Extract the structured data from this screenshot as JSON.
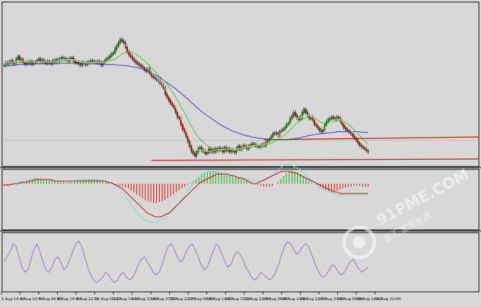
{
  "watermark": {
    "brand": "91PME.COM",
    "tagline": "鑫汇宝贵金属"
  },
  "chart_data": [
    {
      "type": "candlestick",
      "panel": "price",
      "x_ticks": [
        "2 Aug 14:00",
        "3 Aug 22:00",
        "5 Aug 06:00",
        "8 Aug 14:00",
        "9 Aug 22:00",
        "11 Aug 06:00",
        "12 Aug 14:00",
        "13 Aug 22:00",
        "14 Aug 07:00",
        "15 Aug 22:00",
        "17 Aug 06:00",
        "18 Aug 14:00",
        "20 Aug 15:00",
        "21 Aug 22:00",
        "23 Aug 06:00",
        "24 Aug 14:00",
        "26 Aug 22:00",
        "27 Aug 23:00",
        "29 Aug 06:00",
        "30 Aug 14:00",
        "31 Aug 22:00"
      ],
      "price_closes": [
        62,
        58,
        60,
        57,
        55,
        60,
        58,
        52,
        48,
        55,
        53,
        58,
        60,
        57,
        59,
        56,
        60,
        58,
        57,
        55,
        52,
        57,
        54,
        57,
        59,
        56,
        58,
        60,
        55,
        57,
        53,
        55,
        52,
        50,
        51,
        52,
        53,
        55,
        51,
        50,
        55,
        58,
        57,
        60,
        62,
        58,
        60,
        61,
        58,
        57,
        55,
        56,
        57,
        58,
        56,
        58,
        62,
        58,
        55,
        52,
        50,
        47,
        44,
        42,
        35,
        30,
        25,
        20,
        22,
        25,
        32,
        40,
        45,
        48,
        52,
        55,
        58,
        60,
        62,
        64,
        66,
        70,
        72,
        68,
        75,
        80,
        82,
        84,
        86,
        88,
        92,
        95,
        100,
        110,
        115,
        120,
        125,
        128,
        132,
        140,
        148,
        150,
        160,
        168,
        172,
        180,
        188,
        196,
        204,
        208,
        212,
        205,
        200,
        198,
        203,
        204,
        208,
        206,
        201,
        205,
        202,
        205,
        200,
        203,
        199,
        201,
        205,
        198,
        203,
        200,
        205,
        202,
        204,
        206,
        200,
        196,
        201,
        198,
        195,
        197,
        200,
        196,
        194,
        192,
        193,
        195,
        196,
        197,
        195,
        193,
        195,
        190,
        188,
        185,
        180,
        176,
        174,
        175,
        178,
        172,
        170,
        168,
        165,
        160,
        158,
        150,
        146,
        140,
        145,
        150,
        152,
        148,
        140,
        135,
        140,
        145,
        150,
        148,
        152,
        160,
        162,
        166,
        170,
        172,
        168,
        160,
        155,
        152,
        150,
        148,
        150,
        152,
        148,
        150,
        155,
        160,
        165,
        168,
        170,
        172,
        175,
        178,
        182,
        185,
        190,
        194,
        196,
        198,
        200,
        203,
        205
      ],
      "ma_fast": [
        60,
        59,
        58,
        58,
        57,
        57,
        57,
        56,
        55,
        55,
        55,
        55,
        56,
        56,
        56,
        57,
        57,
        57,
        57,
        57,
        56,
        56,
        56,
        56,
        56,
        57,
        57,
        57,
        57,
        56,
        56,
        55,
        54,
        53,
        53,
        53,
        53,
        53,
        53,
        53,
        53,
        54,
        55,
        56,
        57,
        58,
        58,
        59,
        59,
        59,
        58,
        58,
        58,
        57,
        57,
        57,
        58,
        58,
        57,
        56,
        55,
        53,
        51,
        48,
        45,
        42,
        38,
        34,
        31,
        29,
        29,
        30,
        32,
        35,
        38,
        42,
        46,
        50,
        53,
        57,
        60,
        63,
        66,
        68,
        71,
        74,
        77,
        80,
        83,
        86,
        89,
        92,
        96,
        101,
        106,
        111,
        116,
        121,
        126,
        131,
        137,
        143,
        150,
        157,
        163,
        170,
        177,
        184,
        190,
        195,
        200,
        202,
        202,
        202,
        202,
        203,
        204,
        204,
        204,
        204,
        204,
        203,
        203,
        202,
        202,
        202,
        202,
        201,
        201,
        201,
        201,
        201,
        202,
        202,
        201,
        200,
        200,
        199,
        198,
        197,
        197,
        197,
        196,
        195,
        194,
        194,
        194,
        194,
        194,
        194,
        193,
        192,
        191,
        189,
        187,
        184,
        181,
        179,
        178,
        176,
        174,
        172,
        170,
        167,
        164,
        160,
        156,
        152,
        150,
        150,
        150,
        149,
        147,
        145,
        144,
        144,
        145,
        146,
        148,
        151,
        155,
        159,
        163,
        166,
        167,
        166,
        164,
        161,
        158,
        155,
        153,
        152,
        151,
        151,
        152,
        155,
        158,
        161,
        164,
        167,
        170,
        173,
        176,
        179,
        183,
        187,
        190,
        193,
        196,
        199,
        201
      ],
      "ma_mid": [
        62,
        61,
        61,
        60,
        60,
        59,
        59,
        58,
        58,
        57,
        57,
        57,
        57,
        57,
        57,
        57,
        57,
        57,
        57,
        57,
        57,
        57,
        57,
        57,
        57,
        57,
        57,
        57,
        57,
        56,
        56,
        56,
        55,
        55,
        55,
        54,
        54,
        54,
        54,
        54,
        54,
        54,
        55,
        55,
        56,
        56,
        57,
        57,
        57,
        57,
        57,
        57,
        57,
        57,
        57,
        57,
        57,
        57,
        57,
        57,
        56,
        55,
        54,
        53,
        52,
        50,
        48,
        46,
        44,
        42,
        41,
        40,
        40,
        40,
        41,
        42,
        44,
        46,
        48,
        50,
        53,
        55,
        58,
        60,
        63,
        66,
        69,
        72,
        75,
        78,
        81,
        84,
        87,
        90,
        94,
        98,
        102,
        106,
        110,
        115,
        120,
        125,
        130,
        135,
        140,
        146,
        151,
        157,
        163,
        168,
        173,
        177,
        181,
        184,
        187,
        190,
        192,
        194,
        196,
        197,
        198,
        199,
        199,
        200,
        200,
        201,
        201,
        201,
        201,
        201,
        201,
        201,
        201,
        201,
        201,
        200,
        200,
        200,
        199,
        199,
        198,
        198,
        197,
        197,
        196,
        196,
        196,
        195,
        195,
        195,
        194,
        194,
        193,
        192,
        191,
        190,
        188,
        186,
        185,
        183,
        181,
        179,
        177,
        175,
        172,
        169,
        166,
        163,
        160,
        158,
        156,
        154,
        152,
        150,
        149,
        148,
        148,
        148,
        148,
        149,
        151,
        153,
        155,
        157,
        158,
        159,
        159,
        158,
        157,
        156,
        155,
        154,
        153,
        153,
        153,
        154,
        155,
        157,
        159,
        161,
        163,
        166,
        169,
        172,
        175,
        178,
        181,
        184,
        187,
        190,
        193
      ],
      "ma_slow": [
        64,
        64,
        63,
        63,
        63,
        62,
        62,
        62,
        61,
        61,
        61,
        61,
        61,
        61,
        61,
        61,
        61,
        61,
        60,
        60,
        60,
        60,
        60,
        60,
        60,
        60,
        60,
        60,
        60,
        60,
        60,
        60,
        59,
        59,
        59,
        59,
        59,
        59,
        59,
        59,
        59,
        59,
        59,
        59,
        59,
        59,
        59,
        59,
        60,
        60,
        60,
        60,
        60,
        60,
        60,
        61,
        61,
        61,
        61,
        61,
        61,
        61,
        61,
        61,
        61,
        62,
        62,
        62,
        62,
        63,
        63,
        63,
        64,
        64,
        65,
        65,
        66,
        66,
        67,
        68,
        69,
        70,
        71,
        72,
        73,
        75,
        76,
        78,
        79,
        81,
        83,
        85,
        87,
        89,
        91,
        93,
        95,
        97,
        99,
        101,
        104,
        106,
        108,
        111,
        113,
        116,
        118,
        121,
        124,
        126,
        129,
        131,
        134,
        136,
        139,
        141,
        143,
        145,
        147,
        149,
        151,
        153,
        155,
        157,
        159,
        161,
        162,
        164,
        165,
        167,
        168,
        170,
        171,
        172,
        173,
        174,
        175,
        176,
        177,
        178,
        179,
        179,
        180,
        181,
        181,
        182,
        182,
        183,
        183,
        183,
        184,
        184,
        184,
        185,
        185,
        185,
        185,
        185,
        185,
        185,
        185,
        185,
        185,
        185,
        185,
        184,
        184,
        184,
        183,
        183,
        182,
        182,
        181,
        180,
        180,
        179,
        178,
        178,
        177,
        177,
        176,
        176,
        176,
        175,
        175,
        175,
        174,
        174,
        174,
        173,
        173,
        173,
        172,
        172,
        172,
        172,
        172,
        172,
        172,
        172,
        172,
        172,
        172,
        172,
        172,
        172,
        173,
        173,
        173,
        173,
        173
      ],
      "horizontal_lines": [
        {
          "name": "support-upper",
          "from_index": 150,
          "to_index": 265,
          "y_start": 203,
          "y_end": 199
        },
        {
          "name": "support-lower",
          "from_index": 85,
          "to_index": 265,
          "y_start": 233,
          "y_end": 231
        }
      ]
    },
    {
      "type": "histogram",
      "panel": "macd",
      "macd_hist": [
        -2,
        -2,
        -1,
        -1,
        0,
        0,
        1,
        2,
        3,
        4,
        5,
        6,
        6,
        6,
        5,
        5,
        4,
        4,
        3,
        3,
        3,
        2,
        2,
        2,
        2,
        2,
        3,
        3,
        4,
        4,
        5,
        5,
        5,
        5,
        4,
        4,
        3,
        2,
        1,
        0,
        -1,
        -2,
        -3,
        -4,
        -5,
        -7,
        -9,
        -11,
        -13,
        -15,
        -17,
        -18,
        -19,
        -20,
        -20,
        -19,
        -18,
        -17,
        -15,
        -13,
        -11,
        -9,
        -7,
        -5,
        -3,
        -1,
        1,
        3,
        5,
        7,
        9,
        11,
        12,
        13,
        13,
        13,
        12,
        12,
        11,
        10,
        9,
        8,
        7,
        6,
        5,
        4,
        3,
        2,
        1,
        0,
        -1,
        -2,
        -3,
        -3,
        -3,
        -2,
        0,
        2,
        5,
        8,
        11,
        13,
        14,
        13,
        12,
        10,
        8,
        6,
        4,
        2,
        0,
        -2,
        -4,
        -6,
        -7,
        -8,
        -8,
        -8,
        -7,
        -6,
        -5,
        -4,
        -3,
        -3,
        -2,
        -2,
        -2,
        -3,
        -3,
        -3
      ],
      "macd_signal": [
        -1,
        -1,
        -1,
        0,
        0,
        0,
        1,
        1,
        1,
        2,
        2,
        3,
        3,
        3,
        3,
        3,
        3,
        3,
        2,
        2,
        2,
        2,
        2,
        2,
        2,
        2,
        2,
        2,
        2,
        2,
        2,
        2,
        2,
        2,
        2,
        2,
        2,
        1,
        1,
        0,
        -1,
        -2,
        -3,
        -5,
        -7,
        -9,
        -11,
        -13,
        -15,
        -17,
        -19,
        -21,
        -22,
        -23,
        -24,
        -24,
        -24,
        -23,
        -22,
        -21,
        -19,
        -17,
        -15,
        -13,
        -11,
        -9,
        -7,
        -5,
        -3,
        -1,
        1,
        2,
        3,
        4,
        5,
        6,
        7,
        7,
        7,
        7,
        7,
        6,
        6,
        5,
        4,
        4,
        3,
        2,
        1,
        0,
        0,
        1,
        2,
        3,
        4,
        5,
        6,
        7,
        8,
        9,
        9,
        9,
        9,
        8,
        8,
        7,
        6,
        5,
        4,
        3,
        2,
        1,
        0,
        -1,
        -2,
        -3,
        -4,
        -5,
        -6,
        -6,
        -7,
        -7,
        -7,
        -7,
        -7,
        -7,
        -7,
        -7,
        -7,
        -7,
        -7
      ],
      "macd_line": [
        -1,
        -1,
        0,
        0,
        1,
        1,
        2,
        2,
        3,
        3,
        3,
        3,
        3,
        3,
        3,
        3,
        2,
        2,
        2,
        2,
        2,
        2,
        2,
        2,
        2,
        3,
        3,
        3,
        3,
        3,
        3,
        3,
        3,
        2,
        2,
        2,
        1,
        0,
        -1,
        -2,
        -4,
        -7,
        -10,
        -13,
        -16,
        -19,
        -22,
        -24,
        -26,
        -27,
        -28,
        -28,
        -28,
        -27,
        -26,
        -25,
        -23,
        -21,
        -19,
        -17,
        -14,
        -11,
        -8,
        -5,
        -2,
        1,
        3,
        5,
        7,
        8,
        9,
        9,
        9,
        9,
        8,
        8,
        7,
        7,
        6,
        6,
        5,
        5,
        4,
        4,
        3,
        3,
        2,
        2,
        2,
        2,
        3,
        4,
        6,
        8,
        10,
        12,
        13,
        14,
        14,
        13,
        12,
        11,
        10,
        8,
        6,
        4,
        2,
        0,
        -2,
        -3,
        -4,
        -5,
        -6,
        -7,
        -8,
        -8,
        -8,
        -8,
        -8,
        -8,
        -8,
        -8,
        -8,
        -8,
        -8,
        -8
      ]
    },
    {
      "type": "line",
      "panel": "stochastic",
      "stoch_k": [
        50,
        60,
        70,
        85,
        80,
        60,
        40,
        30,
        35,
        55,
        75,
        85,
        70,
        50,
        35,
        30,
        40,
        55,
        60,
        50,
        35,
        40,
        55,
        70,
        85,
        90,
        80,
        60,
        40,
        25,
        15,
        10,
        15,
        20,
        30,
        25,
        15,
        10,
        15,
        25,
        30,
        20,
        15,
        20,
        30,
        45,
        55,
        60,
        50,
        40,
        30,
        25,
        30,
        45,
        65,
        80,
        85,
        75,
        60,
        50,
        55,
        70,
        80,
        85,
        75,
        60,
        45,
        35,
        40,
        55,
        70,
        85,
        80,
        65,
        50,
        40,
        45,
        60,
        70,
        65,
        55,
        40,
        30,
        20,
        15,
        20,
        30,
        25,
        20,
        15,
        20,
        30,
        45,
        65,
        80,
        90,
        85,
        75,
        65,
        70,
        80,
        85,
        80,
        65,
        50,
        35,
        25,
        20,
        25,
        35,
        45,
        40,
        30,
        25,
        30,
        40,
        50,
        55,
        45,
        35,
        30,
        35,
        40
      ],
      "stoch_d": [
        55,
        57,
        62,
        70,
        75,
        72,
        62,
        50,
        42,
        42,
        52,
        65,
        73,
        68,
        55,
        45,
        38,
        40,
        48,
        52,
        50,
        45,
        45,
        52,
        65,
        78,
        85,
        80,
        68,
        52,
        38,
        28,
        20,
        17,
        20,
        22,
        22,
        20,
        17,
        18,
        22,
        25,
        25,
        22,
        22,
        27,
        35,
        45,
        52,
        53,
        47,
        40,
        35,
        35,
        42,
        55,
        70,
        78,
        77,
        70,
        62,
        60,
        65,
        72,
        78,
        75,
        65,
        52,
        45,
        43,
        52,
        65,
        75,
        75,
        68,
        58,
        50,
        50,
        55,
        60,
        62,
        58,
        50,
        40,
        30,
        22,
        20,
        22,
        23,
        22,
        20,
        22,
        28,
        40,
        55,
        70,
        80,
        83,
        78,
        72,
        72,
        77,
        80,
        78,
        70,
        57,
        45,
        35,
        28,
        27,
        32,
        37,
        38,
        35,
        31,
        32,
        37,
        45,
        47,
        45,
        40,
        37,
        35
      ]
    }
  ]
}
